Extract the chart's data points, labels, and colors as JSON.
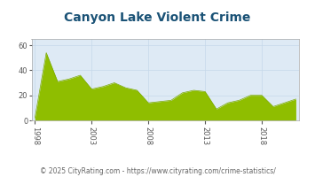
{
  "title": "Canyon Lake Violent Crime",
  "title_color": "#1a5276",
  "footer": "© 2025 CityRating.com - https://www.cityrating.com/crime-statistics/",
  "years": [
    1998,
    1999,
    2000,
    2001,
    2002,
    2003,
    2004,
    2005,
    2006,
    2007,
    2008,
    2009,
    2010,
    2011,
    2012,
    2013,
    2014,
    2015,
    2016,
    2017,
    2018,
    2019,
    2020,
    2021
  ],
  "values": [
    2,
    54,
    31,
    33,
    36,
    25,
    27,
    30,
    26,
    24,
    14,
    15,
    16,
    22,
    24,
    23,
    9,
    14,
    16,
    20,
    20,
    11,
    14,
    17
  ],
  "fill_color": "#8fbe00",
  "fill_color_dark": "#7aaa00",
  "bg_color": "#deeaf5",
  "outer_bg": "#ffffff",
  "ylim": [
    0,
    65
  ],
  "yticks": [
    0,
    20,
    40,
    60
  ],
  "xticks": [
    1998,
    2003,
    2008,
    2013,
    2018
  ],
  "grid_color": "#c5d8ea",
  "side_panel_color": "#b0bec8",
  "bottom_panel_color": "#b0bec8",
  "title_fontsize": 10,
  "tick_fontsize": 6,
  "footer_fontsize": 5.5
}
